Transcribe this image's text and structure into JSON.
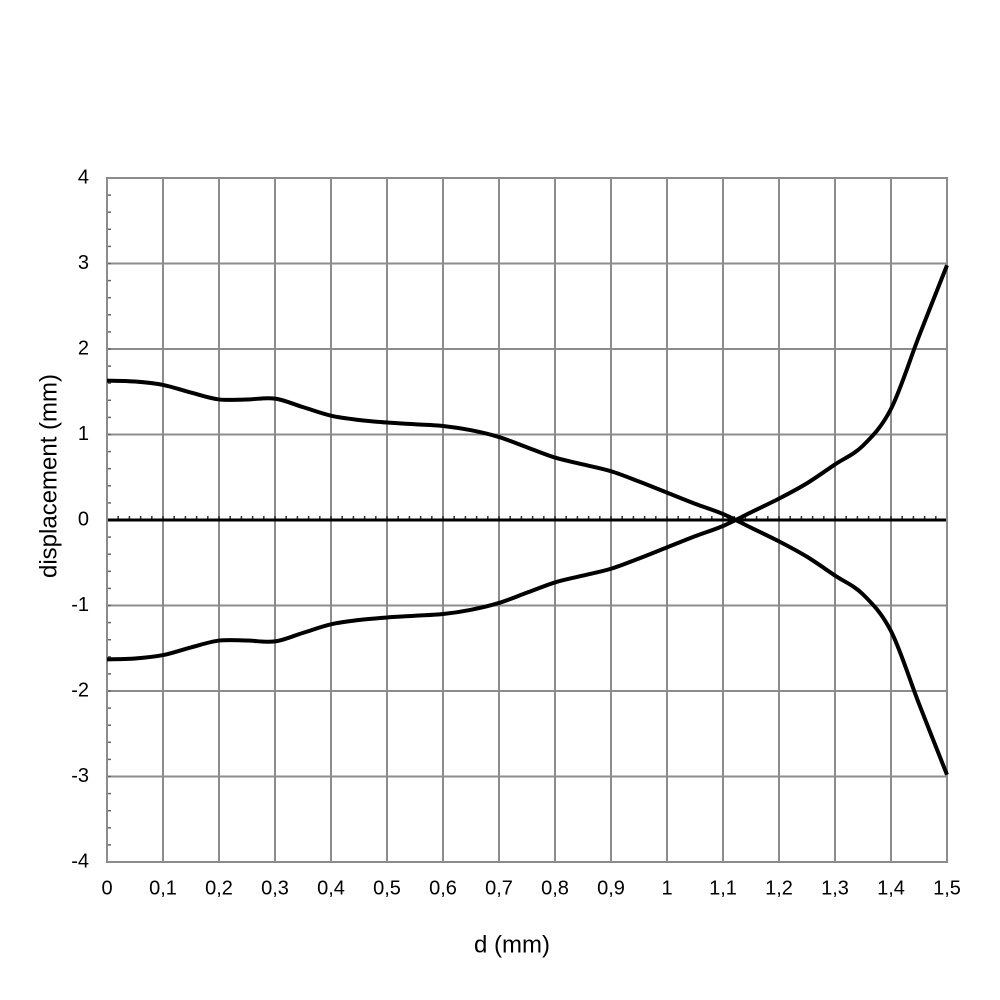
{
  "chart_data": {
    "type": "line",
    "x_label": "d (mm)",
    "y_label": "displacement (mm)",
    "x": [
      0,
      0.05,
      0.1,
      0.15,
      0.2,
      0.25,
      0.3,
      0.35,
      0.4,
      0.45,
      0.5,
      0.55,
      0.6,
      0.65,
      0.7,
      0.75,
      0.8,
      0.85,
      0.9,
      0.95,
      1,
      1.05,
      1.1,
      1.15,
      1.2,
      1.25,
      1.3,
      1.35,
      1.4,
      1.45,
      1.5
    ],
    "series": [
      {
        "color": "#000000",
        "values": [
          1.63,
          1.62,
          1.58,
          1.49,
          1.41,
          1.41,
          1.42,
          1.32,
          1.22,
          1.17,
          1.14,
          1.12,
          1.1,
          1.05,
          0.97,
          0.85,
          0.73,
          0.65,
          0.57,
          0.45,
          0.32,
          0.19,
          0.07,
          -0.09,
          -0.25,
          -0.43,
          -0.65,
          -0.87,
          -1.3,
          -2.15,
          -2.98
        ]
      },
      {
        "color": "#000000",
        "values": [
          -1.63,
          -1.62,
          -1.58,
          -1.49,
          -1.41,
          -1.41,
          -1.42,
          -1.32,
          -1.22,
          -1.17,
          -1.14,
          -1.12,
          -1.1,
          -1.05,
          -0.97,
          -0.85,
          -0.73,
          -0.65,
          -0.57,
          -0.45,
          -0.32,
          -0.19,
          -0.07,
          0.09,
          0.25,
          0.43,
          0.65,
          0.87,
          1.3,
          2.15,
          2.98
        ]
      }
    ],
    "xlim": [
      0,
      1.5
    ],
    "xticks": [
      0,
      {
        "value": 0.1,
        "label": "0,1"
      },
      {
        "value": 0.2,
        "label": "0,2"
      },
      {
        "value": 0.3,
        "label": "0,3"
      },
      {
        "value": 0.4,
        "label": "0,4"
      },
      {
        "value": 0.5,
        "label": "0,5"
      },
      {
        "value": 0.6,
        "label": "0,6"
      },
      {
        "value": 0.7,
        "label": "0,7"
      },
      {
        "value": 0.8,
        "label": "0,8"
      },
      {
        "value": 0.9,
        "label": "0,9"
      },
      1,
      {
        "value": 1.1,
        "label": "1,1"
      },
      {
        "value": 1.2,
        "label": "1,2"
      },
      {
        "value": 1.3,
        "label": "1,3"
      },
      {
        "value": 1.4,
        "label": "1,4"
      },
      {
        "value": 1.5,
        "label": "1,5"
      }
    ],
    "ylim": [
      -4,
      4
    ],
    "yticks": [
      -4,
      -3,
      -2,
      -1,
      0,
      1,
      2,
      3,
      4
    ],
    "grid": true
  }
}
